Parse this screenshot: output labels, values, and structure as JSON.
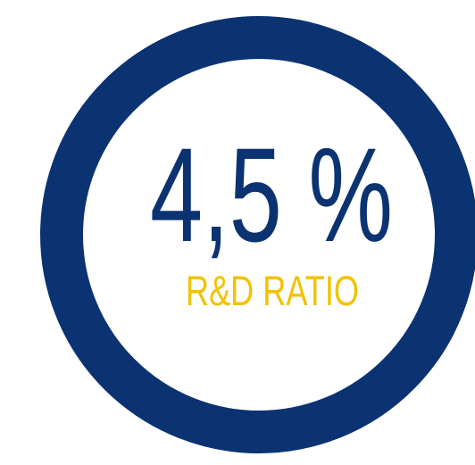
{
  "headline": "4,5 %",
  "label": "R&D RATIO"
}
